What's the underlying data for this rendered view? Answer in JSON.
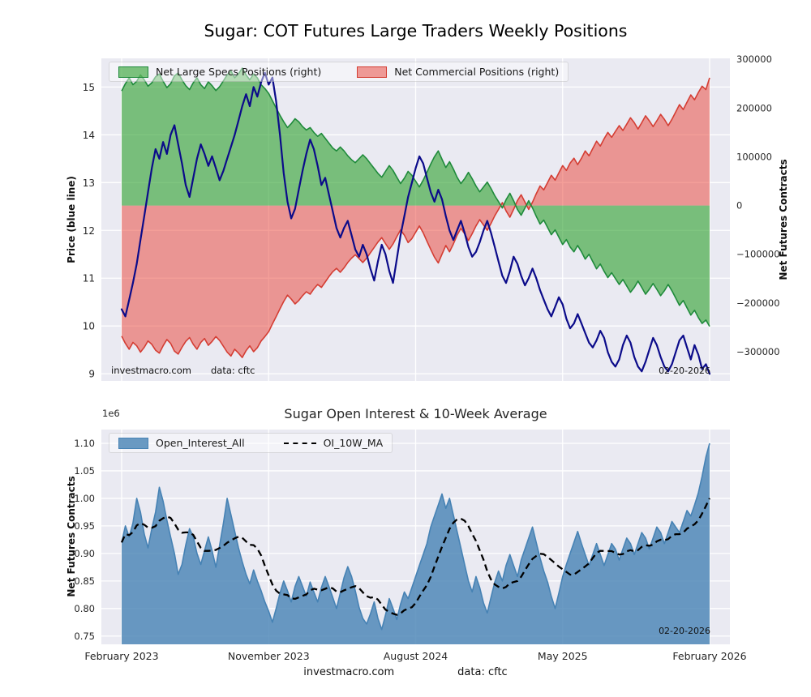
{
  "figure": {
    "title": "Sugar: COT Futures Large Traders Weekly Positions",
    "plot_bg": "#eaeaf2",
    "grid_color": "#ffffff",
    "footer": {
      "watermark": "investmacro.com",
      "source": "data: cftc"
    }
  },
  "chart_data": [
    {
      "id": "cot-positions",
      "type": "area+line",
      "title": "Sugar: COT Futures Large Traders Weekly Positions",
      "x_ticks": {
        "positions": [
          0,
          0.25,
          0.5,
          0.75,
          1
        ],
        "labels": [
          "February 2023",
          "November 2023",
          "August 2024",
          "May 2025",
          "February 2026"
        ],
        "labels_visible": false
      },
      "axes": {
        "left": {
          "label": "Price (blue line)",
          "ticks": [
            15,
            14,
            13,
            12,
            11,
            10,
            9
          ],
          "range": [
            8.85,
            15.6
          ]
        },
        "right": {
          "label": "Net Futures Contracts",
          "ticks": [
            300000,
            200000,
            100000,
            0,
            -100000,
            -200000,
            -300000
          ],
          "range": [
            -360000,
            302000
          ]
        }
      },
      "legend": [
        {
          "label": "Net Large Specs Positions (right)"
        },
        {
          "label": "Net Commercial Positions (right)"
        }
      ],
      "annotations": {
        "watermark": "investmacro.com",
        "source": "data: cftc",
        "date": "02-20-2026"
      },
      "series": [
        {
          "name": "Net Large Specs Positions",
          "axis": "right",
          "kind": "area",
          "scale": 1000,
          "line_color": "#1f8a3b",
          "fill_color": "rgba(44,160,44,0.6)",
          "values": [
            235,
            250,
            262,
            248,
            255,
            268,
            258,
            245,
            252,
            264,
            270,
            255,
            242,
            250,
            266,
            272,
            258,
            246,
            238,
            252,
            262,
            248,
            240,
            254,
            246,
            236,
            244,
            256,
            268,
            276,
            262,
            270,
            282,
            268,
            258,
            270,
            262,
            248,
            240,
            230,
            215,
            200,
            185,
            172,
            160,
            168,
            178,
            172,
            162,
            155,
            160,
            150,
            142,
            148,
            138,
            128,
            118,
            112,
            120,
            112,
            102,
            94,
            88,
            96,
            104,
            96,
            86,
            76,
            66,
            58,
            70,
            82,
            72,
            58,
            45,
            56,
            70,
            62,
            50,
            38,
            52,
            68,
            85,
            100,
            112,
            95,
            78,
            90,
            75,
            58,
            45,
            55,
            68,
            55,
            40,
            28,
            38,
            48,
            35,
            20,
            8,
            -5,
            12,
            25,
            10,
            -8,
            -20,
            -5,
            10,
            -5,
            -22,
            -38,
            -30,
            -45,
            -60,
            -50,
            -65,
            -80,
            -70,
            -85,
            -95,
            -82,
            -95,
            -110,
            -100,
            -115,
            -130,
            -120,
            -135,
            -148,
            -138,
            -150,
            -162,
            -152,
            -165,
            -178,
            -168,
            -155,
            -168,
            -182,
            -172,
            -160,
            -172,
            -185,
            -175,
            -162,
            -175,
            -190,
            -205,
            -195,
            -210,
            -225,
            -215,
            -230,
            -242,
            -235,
            -248
          ]
        },
        {
          "name": "Net Commercial Positions",
          "axis": "right",
          "kind": "area",
          "scale": 1000,
          "line_color": "#d43d33",
          "fill_color": "rgba(233,63,51,0.5)",
          "values": [
            -268,
            -283,
            -295,
            -281,
            -288,
            -301,
            -291,
            -278,
            -285,
            -297,
            -303,
            -288,
            -275,
            -283,
            -299,
            -305,
            -291,
            -279,
            -271,
            -285,
            -295,
            -281,
            -273,
            -287,
            -279,
            -269,
            -277,
            -289,
            -301,
            -309,
            -295,
            -303,
            -312,
            -298,
            -288,
            -300,
            -292,
            -278,
            -269,
            -259,
            -243,
            -228,
            -212,
            -197,
            -184,
            -192,
            -202,
            -195,
            -185,
            -177,
            -182,
            -171,
            -162,
            -168,
            -157,
            -146,
            -136,
            -129,
            -137,
            -128,
            -117,
            -108,
            -101,
            -109,
            -117,
            -108,
            -97,
            -86,
            -75,
            -66,
            -78,
            -90,
            -79,
            -64,
            -50,
            -61,
            -76,
            -68,
            -55,
            -42,
            -56,
            -73,
            -90,
            -106,
            -118,
            -100,
            -82,
            -95,
            -79,
            -61,
            -47,
            -58,
            -72,
            -58,
            -42,
            -29,
            -40,
            -51,
            -37,
            -21,
            -8,
            6,
            -11,
            -24,
            -8,
            10,
            22,
            7,
            -8,
            7,
            24,
            40,
            32,
            47,
            62,
            52,
            67,
            82,
            72,
            87,
            97,
            84,
            97,
            112,
            102,
            117,
            132,
            122,
            137,
            150,
            140,
            152,
            164,
            154,
            167,
            180,
            170,
            157,
            170,
            184,
            174,
            162,
            174,
            187,
            177,
            164,
            177,
            192,
            207,
            197,
            212,
            227,
            217,
            232,
            245,
            238,
            262
          ]
        },
        {
          "name": "Sugar Price",
          "axis": "left",
          "kind": "line",
          "scale": 1,
          "line_color": "#0b0b8a",
          "values": [
            10.35,
            10.2,
            10.55,
            10.9,
            11.3,
            11.8,
            12.3,
            12.8,
            13.3,
            13.7,
            13.5,
            13.85,
            13.6,
            14.0,
            14.2,
            13.8,
            13.4,
            12.95,
            12.7,
            13.1,
            13.5,
            13.8,
            13.6,
            13.35,
            13.55,
            13.3,
            13.05,
            13.25,
            13.5,
            13.75,
            14.0,
            14.3,
            14.6,
            14.85,
            14.6,
            15.0,
            14.8,
            15.1,
            15.3,
            15.05,
            15.2,
            14.7,
            14.0,
            13.2,
            12.6,
            12.25,
            12.45,
            12.85,
            13.25,
            13.6,
            13.9,
            13.7,
            13.35,
            12.95,
            13.1,
            12.75,
            12.4,
            12.05,
            11.85,
            12.05,
            12.2,
            11.9,
            11.6,
            11.45,
            11.7,
            11.5,
            11.2,
            10.95,
            11.35,
            11.7,
            11.5,
            11.15,
            10.9,
            11.4,
            11.9,
            12.3,
            12.7,
            13.0,
            13.3,
            13.55,
            13.4,
            13.1,
            12.8,
            12.6,
            12.85,
            12.65,
            12.3,
            12.0,
            11.8,
            12.0,
            12.2,
            11.95,
            11.65,
            11.45,
            11.55,
            11.75,
            12.0,
            12.2,
            11.95,
            11.65,
            11.35,
            11.05,
            10.9,
            11.15,
            11.45,
            11.3,
            11.05,
            10.85,
            11.0,
            11.2,
            11.0,
            10.75,
            10.55,
            10.35,
            10.2,
            10.4,
            10.6,
            10.45,
            10.15,
            9.95,
            10.05,
            10.25,
            10.05,
            9.85,
            9.65,
            9.55,
            9.7,
            9.9,
            9.75,
            9.45,
            9.25,
            9.15,
            9.3,
            9.6,
            9.8,
            9.65,
            9.35,
            9.15,
            9.05,
            9.25,
            9.5,
            9.75,
            9.6,
            9.35,
            9.15,
            9.05,
            9.2,
            9.45,
            9.7,
            9.8,
            9.55,
            9.3,
            9.6,
            9.4,
            9.1,
            9.2,
            9.0
          ]
        }
      ]
    },
    {
      "id": "open-interest",
      "type": "area+line",
      "title": "Sugar Open Interest & 10-Week Average",
      "offset_text": "1e6",
      "x_ticks": {
        "positions": [
          0,
          0.25,
          0.5,
          0.75,
          1
        ],
        "labels": [
          "February 2023",
          "November 2023",
          "August 2024",
          "May 2025",
          "February 2026"
        ],
        "labels_visible": true
      },
      "axes": {
        "left": {
          "label": "Net Futures Contracts",
          "ticks": [
            1.1,
            1.05,
            1.0,
            0.95,
            0.9,
            0.85,
            0.8,
            0.75
          ],
          "range": [
            0.735,
            1.125
          ]
        }
      },
      "legend": [
        {
          "label": "Open_Interest_All"
        },
        {
          "label": "OI_10W_MA"
        }
      ],
      "annotations": {
        "date": "02-20-2026"
      },
      "series": [
        {
          "name": "Open_Interest_All",
          "kind": "area",
          "unit": "1e6",
          "line_color": "#4682b4",
          "fill_color": "rgba(70,130,180,0.8)",
          "values": [
            0.92,
            0.95,
            0.93,
            0.955,
            1.0,
            0.975,
            0.935,
            0.91,
            0.945,
            0.975,
            1.02,
            0.995,
            0.96,
            0.93,
            0.9,
            0.862,
            0.88,
            0.915,
            0.945,
            0.93,
            0.9,
            0.88,
            0.905,
            0.93,
            0.905,
            0.875,
            0.915,
            0.955,
            1.0,
            0.97,
            0.94,
            0.91,
            0.885,
            0.862,
            0.845,
            0.87,
            0.85,
            0.832,
            0.812,
            0.795,
            0.775,
            0.8,
            0.828,
            0.85,
            0.832,
            0.812,
            0.84,
            0.858,
            0.84,
            0.822,
            0.848,
            0.83,
            0.812,
            0.838,
            0.858,
            0.84,
            0.82,
            0.8,
            0.828,
            0.856,
            0.876,
            0.858,
            0.832,
            0.802,
            0.782,
            0.772,
            0.79,
            0.812,
            0.782,
            0.762,
            0.788,
            0.818,
            0.8,
            0.78,
            0.808,
            0.83,
            0.818,
            0.838,
            0.858,
            0.878,
            0.898,
            0.918,
            0.948,
            0.968,
            0.988,
            1.008,
            0.982,
            1.0,
            0.97,
            0.94,
            0.91,
            0.88,
            0.85,
            0.83,
            0.858,
            0.838,
            0.81,
            0.792,
            0.82,
            0.848,
            0.868,
            0.85,
            0.878,
            0.898,
            0.878,
            0.858,
            0.888,
            0.908,
            0.928,
            0.948,
            0.92,
            0.892,
            0.868,
            0.848,
            0.822,
            0.8,
            0.828,
            0.858,
            0.88,
            0.9,
            0.92,
            0.94,
            0.918,
            0.898,
            0.878,
            0.898,
            0.918,
            0.898,
            0.878,
            0.898,
            0.918,
            0.908,
            0.888,
            0.908,
            0.928,
            0.918,
            0.898,
            0.918,
            0.938,
            0.928,
            0.908,
            0.928,
            0.948,
            0.938,
            0.918,
            0.938,
            0.958,
            0.948,
            0.938,
            0.958,
            0.978,
            0.968,
            0.988,
            1.01,
            1.04,
            1.075,
            1.1
          ]
        },
        {
          "name": "OI_10W_MA",
          "kind": "moving_average",
          "window": 10,
          "line_color": "#000000",
          "style": "dashed"
        }
      ]
    }
  ]
}
